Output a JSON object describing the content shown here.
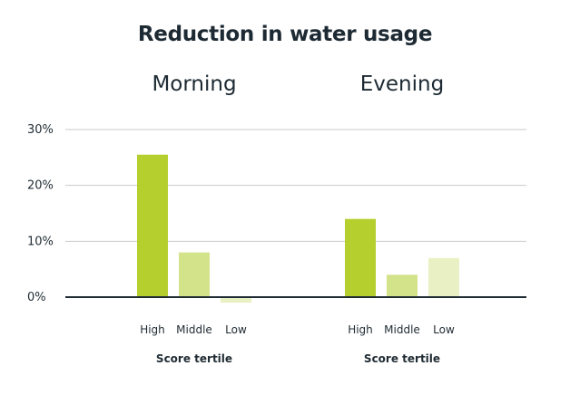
{
  "chart_data": {
    "type": "bar",
    "title": "Reduction in water usage",
    "ylim": [
      0,
      30
    ],
    "yticks": [
      {
        "value": 0,
        "label": "0%"
      },
      {
        "value": 10,
        "label": "10%"
      },
      {
        "value": 20,
        "label": "20%"
      },
      {
        "value": 30,
        "label": "30%"
      }
    ],
    "grid": true,
    "categories": [
      "High",
      "Middle",
      "Low"
    ],
    "panels": [
      {
        "name": "Morning",
        "xlabel": "Score tertile",
        "values": [
          25.5,
          8,
          -1
        ],
        "colors": [
          "#b5cf2e",
          "#d3e38a",
          "#e9f1c4"
        ]
      },
      {
        "name": "Evening",
        "xlabel": "Score tertile",
        "values": [
          14,
          4,
          7
        ],
        "colors": [
          "#b5cf2e",
          "#d3e38a",
          "#e9f1c4"
        ]
      }
    ]
  }
}
